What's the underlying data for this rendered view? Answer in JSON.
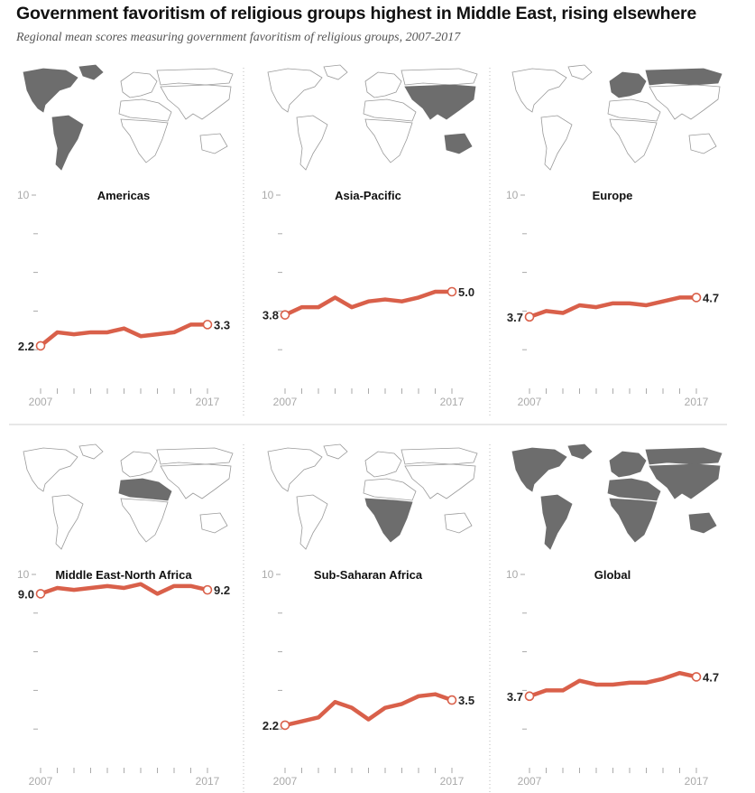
{
  "title": "Government favoritism of religious groups highest in Middle East, rising elsewhere",
  "subtitle": "Regional mean scores measuring government favoritism of religious groups, 2007-2017",
  "colors": {
    "line": "#d9604a",
    "map_highlight": "#6d6d6d",
    "map_outline": "#9a9a9a",
    "axis": "#aaaaaa"
  },
  "chart_data": [
    {
      "type": "line",
      "title": "Americas",
      "highlight": [
        "americas"
      ],
      "x": [
        2007,
        2008,
        2009,
        2010,
        2011,
        2012,
        2013,
        2014,
        2015,
        2016,
        2017
      ],
      "values": [
        2.2,
        2.9,
        2.8,
        2.9,
        2.9,
        3.1,
        2.7,
        2.8,
        2.9,
        3.3,
        3.3
      ],
      "ylim": [
        0,
        10
      ],
      "ytick_label": "10",
      "start_label": "2.2",
      "end_label": "3.3",
      "xtick_labels": [
        "2007",
        "2017"
      ]
    },
    {
      "type": "line",
      "title": "Asia-Pacific",
      "highlight": [
        "asia",
        "oceania"
      ],
      "x": [
        2007,
        2008,
        2009,
        2010,
        2011,
        2012,
        2013,
        2014,
        2015,
        2016,
        2017
      ],
      "values": [
        3.8,
        4.2,
        4.2,
        4.7,
        4.2,
        4.5,
        4.6,
        4.5,
        4.7,
        5.0,
        5.0
      ],
      "ylim": [
        0,
        10
      ],
      "ytick_label": "10",
      "start_label": "3.8",
      "end_label": "5.0",
      "xtick_labels": [
        "2007",
        "2017"
      ]
    },
    {
      "type": "line",
      "title": "Europe",
      "highlight": [
        "europe"
      ],
      "x": [
        2007,
        2008,
        2009,
        2010,
        2011,
        2012,
        2013,
        2014,
        2015,
        2016,
        2017
      ],
      "values": [
        3.7,
        4.0,
        3.9,
        4.3,
        4.2,
        4.4,
        4.4,
        4.3,
        4.5,
        4.7,
        4.7
      ],
      "ylim": [
        0,
        10
      ],
      "ytick_label": "10",
      "start_label": "3.7",
      "end_label": "4.7",
      "xtick_labels": [
        "2007",
        "2017"
      ]
    },
    {
      "type": "line",
      "title": "Middle East-North Africa",
      "highlight": [
        "mena"
      ],
      "x": [
        2007,
        2008,
        2009,
        2010,
        2011,
        2012,
        2013,
        2014,
        2015,
        2016,
        2017
      ],
      "values": [
        9.0,
        9.3,
        9.2,
        9.3,
        9.4,
        9.3,
        9.5,
        9.0,
        9.4,
        9.4,
        9.2
      ],
      "ylim": [
        0,
        10
      ],
      "ytick_label": "10",
      "start_label": "9.0",
      "end_label": "9.2",
      "xtick_labels": [
        "2007",
        "2017"
      ]
    },
    {
      "type": "line",
      "title": "Sub-Saharan Africa",
      "highlight": [
        "ssa"
      ],
      "x": [
        2007,
        2008,
        2009,
        2010,
        2011,
        2012,
        2013,
        2014,
        2015,
        2016,
        2017
      ],
      "values": [
        2.2,
        2.4,
        2.6,
        3.4,
        3.1,
        2.5,
        3.1,
        3.3,
        3.7,
        3.8,
        3.5
      ],
      "ylim": [
        0,
        10
      ],
      "ytick_label": "10",
      "start_label": "2.2",
      "end_label": "3.5",
      "xtick_labels": [
        "2007",
        "2017"
      ]
    },
    {
      "type": "line",
      "title": "Global",
      "highlight": [
        "all"
      ],
      "x": [
        2007,
        2008,
        2009,
        2010,
        2011,
        2012,
        2013,
        2014,
        2015,
        2016,
        2017
      ],
      "values": [
        3.7,
        4.0,
        4.0,
        4.5,
        4.3,
        4.3,
        4.4,
        4.4,
        4.6,
        4.9,
        4.7
      ],
      "ylim": [
        0,
        10
      ],
      "ytick_label": "10",
      "start_label": "3.7",
      "end_label": "4.7",
      "xtick_labels": [
        "2007",
        "2017"
      ]
    }
  ]
}
